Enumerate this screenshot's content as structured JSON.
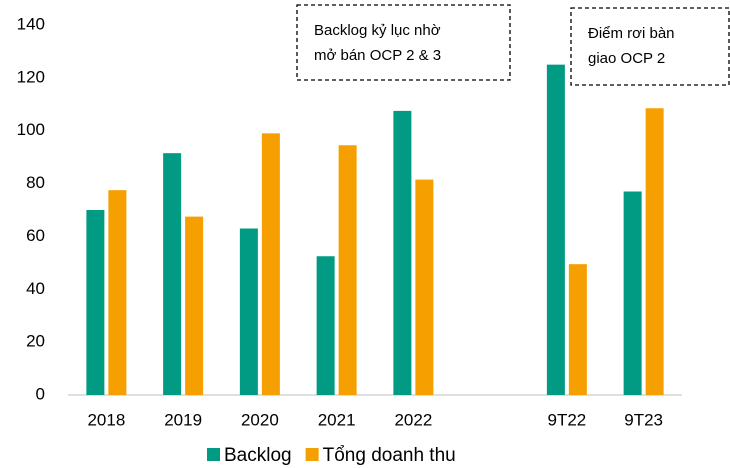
{
  "chart_data": {
    "type": "bar",
    "categories": [
      "2018",
      "2019",
      "2020",
      "2021",
      "2022",
      null,
      "9T22",
      "9T23"
    ],
    "series": [
      {
        "name": "Backlog",
        "color": "#009b82",
        "values": [
          70,
          91.5,
          63,
          52.5,
          107.5,
          null,
          125,
          77
        ]
      },
      {
        "name": "Tổng doanh thu",
        "color": "#f5a000",
        "values": [
          77.5,
          67.5,
          99,
          94.5,
          81.5,
          null,
          49.5,
          108.5
        ]
      }
    ],
    "ylim": [
      0,
      140
    ],
    "yticks": [
      0,
      20,
      40,
      60,
      80,
      100,
      120,
      140
    ],
    "grid": false,
    "legend": "bottom",
    "annotations": [
      {
        "lines": [
          "Backlog kỷ lục nhờ",
          "mở bán OCP 2 & 3"
        ]
      },
      {
        "lines": [
          "Điểm rơi bàn",
          "giao OCP 2"
        ]
      }
    ]
  }
}
